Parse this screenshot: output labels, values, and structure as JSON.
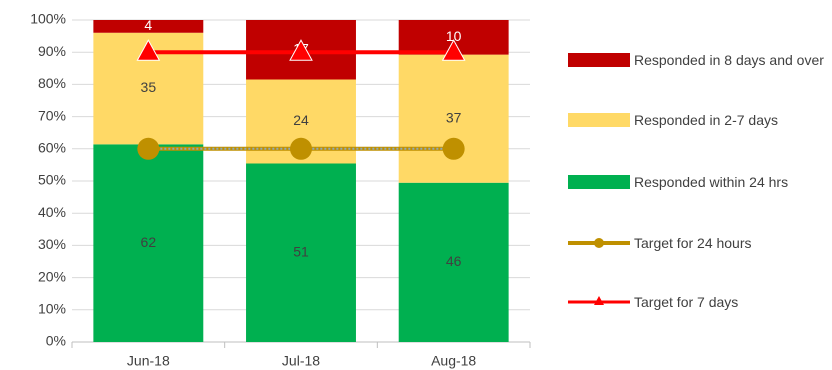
{
  "chart_data": {
    "type": "bar",
    "stacking": "percent",
    "categories": [
      "Jun-18",
      "Jul-18",
      "Aug-18"
    ],
    "series": [
      {
        "name": "Responded within 24 hrs",
        "color": "#00b050",
        "values": [
          62,
          51,
          46
        ]
      },
      {
        "name": "Responded in 2-7 days",
        "color": "#ffd966",
        "values": [
          35,
          24,
          37
        ]
      },
      {
        "name": "Responded in 8 days and over",
        "color": "#c00000",
        "values": [
          4,
          17,
          10
        ]
      },
      {
        "name": "Target for 24 hours",
        "kind": "line",
        "marker": "circle",
        "color": "#bf9000",
        "values": [
          60,
          60,
          60
        ]
      },
      {
        "name": "Target for 7 days",
        "kind": "line",
        "marker": "triangle",
        "color": "#ff0000",
        "values": [
          90,
          90,
          90
        ]
      }
    ],
    "ylim": [
      0,
      100
    ],
    "yticks": [
      {
        "value": 0,
        "label": "0%"
      },
      {
        "value": 10,
        "label": "10%"
      },
      {
        "value": 20,
        "label": "20%"
      },
      {
        "value": 30,
        "label": "30%"
      },
      {
        "value": 40,
        "label": "40%"
      },
      {
        "value": 50,
        "label": "50%"
      },
      {
        "value": 60,
        "label": "60%"
      },
      {
        "value": 70,
        "label": "70%"
      },
      {
        "value": 80,
        "label": "80%"
      },
      {
        "value": 90,
        "label": "90%"
      },
      {
        "value": 100,
        "label": "100%"
      }
    ],
    "grid": true,
    "legend": "right"
  }
}
